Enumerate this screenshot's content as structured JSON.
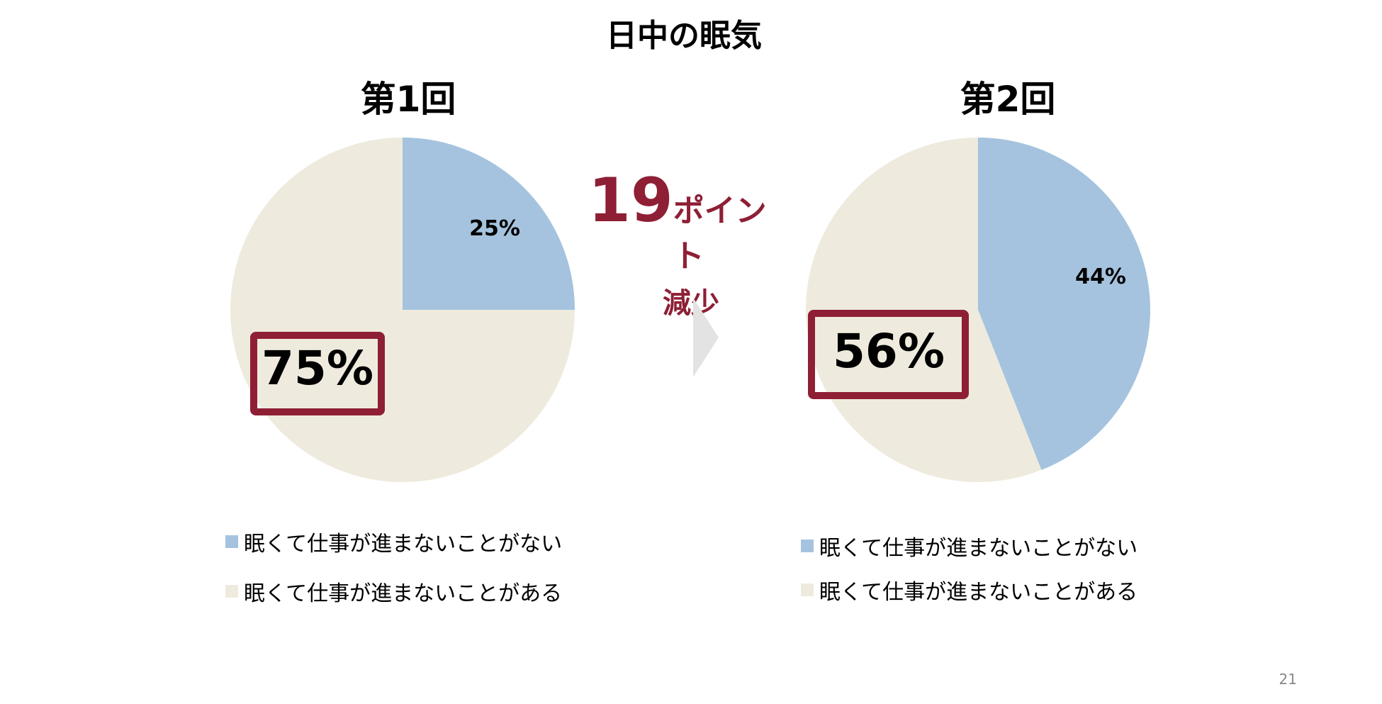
{
  "title": "日中の眠気",
  "colors": {
    "blue": "#a5c3de",
    "beige": "#eeebde",
    "accent": "#8e1f35",
    "arrow": "#e3e3e3"
  },
  "callout": {
    "number": "19",
    "unit": "ポイント",
    "sub": "減少"
  },
  "big_labels": {
    "first": "75%",
    "second": "56%"
  },
  "page_number": "21",
  "chart_data": [
    {
      "type": "pie",
      "title": "第1回",
      "categories": [
        "眠くて仕事が進まないことがない",
        "眠くて仕事が進まないことがある"
      ],
      "values": [
        25,
        75
      ],
      "data_labels": [
        "25%",
        "75%"
      ],
      "legend": {
        "placement": "bottom",
        "entries": [
          "眠くて仕事が進まないことがない",
          "眠くて仕事が進まないことがある"
        ]
      }
    },
    {
      "type": "pie",
      "title": "第2回",
      "categories": [
        "眠くて仕事が進まないことがない",
        "眠くて仕事が進まないことがある"
      ],
      "values": [
        44,
        56
      ],
      "data_labels": [
        "44%",
        "56%"
      ],
      "legend": {
        "placement": "bottom",
        "entries": [
          "眠くて仕事が進まないことがない",
          "眠くて仕事が進まないことがある"
        ]
      }
    }
  ]
}
